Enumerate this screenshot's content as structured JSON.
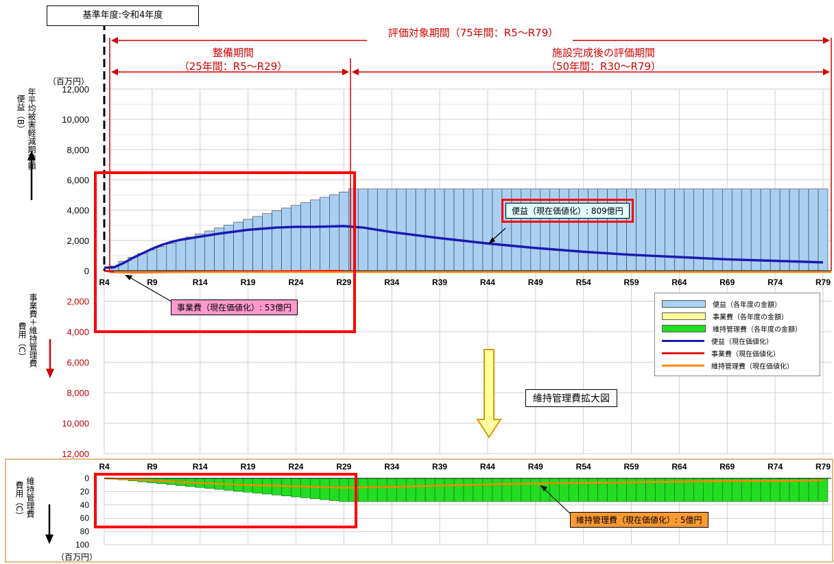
{
  "base_year_label": "基準年度:令和4年度",
  "periods": {
    "evaluation_total": "評価対象期間（75年間：R5～R79）",
    "construction_title": "整備期間",
    "construction_range": "（25年間：R5～R29）",
    "post_title": "施設完成後の評価期間",
    "post_range": "（50年間：R30～R79）"
  },
  "unit_top": "（百万円）",
  "unit_bottom": "（百万円）",
  "axis_labels": {
    "benefit_main": "便益（B）",
    "benefit_sub": "年平均被害軽減期待額",
    "cost_main": "費用（C）",
    "cost_sub": "事業費＋維持管理費",
    "maint_main": "費用（C）",
    "maint_sub": "維持管理費"
  },
  "callouts": {
    "benefit_pv": "便益（現在価値化）:  809億円",
    "project_cost_pv": "事業費（現在価値化）:  53億円",
    "maint_pv": "維持管理費（現在価値化）:  5億円",
    "zoom_label": "維持管理費拡大図"
  },
  "legend": [
    {
      "label": "便益（各年度の金額）",
      "color": "#a9cff2",
      "kind": "box"
    },
    {
      "label": "事業費（各年度の金額）",
      "color": "#ffff99",
      "kind": "box"
    },
    {
      "label": "維持管理費（各年度の金額）",
      "color": "#22dd22",
      "kind": "box"
    },
    {
      "label": "便益（現在価値化）",
      "color": "#1a1ab0",
      "kind": "line"
    },
    {
      "label": "事業費（現在価値化）",
      "color": "#e51111",
      "kind": "line"
    },
    {
      "label": "維持管理費（現在価値化）",
      "color": "#ff8800",
      "kind": "line"
    }
  ],
  "chart_data": [
    {
      "type": "bar",
      "x_tick_labels": [
        "R4",
        "R9",
        "R14",
        "R19",
        "R24",
        "R29",
        "R34",
        "R39",
        "R44",
        "R49",
        "R54",
        "R59",
        "R64",
        "R69",
        "R74",
        "R79"
      ],
      "y_upper_ticks": [
        "12,000",
        "10,000",
        "8,000",
        "6,000",
        "4,000",
        "2,000",
        "0"
      ],
      "y_lower_ticks": [
        "2,000",
        "4,000",
        "6,000",
        "8,000",
        "10,000",
        "12,000"
      ],
      "ylim_upper": [
        0,
        12000
      ],
      "ylim_lower": [
        0,
        12000
      ],
      "grid": true,
      "legend_position": "right",
      "series": [
        {
          "name": "便益（各年度の金額）",
          "type": "bar",
          "start": "R5",
          "end": "R79",
          "description_values": "rises from ~300 at R5 to ~5,200 at R29, then constant ~5,400 R30–R79"
        },
        {
          "name": "便益（現在価値化）",
          "type": "line",
          "points": [
            [
              "R4",
              200
            ],
            [
              "R5",
              220
            ],
            [
              "R6",
              500
            ],
            [
              "R7",
              850
            ],
            [
              "R8",
              1150
            ],
            [
              "R9",
              1450
            ],
            [
              "R10",
              1700
            ],
            [
              "R11",
              1900
            ],
            [
              "R12",
              2050
            ],
            [
              "R14",
              2250
            ],
            [
              "R16",
              2450
            ],
            [
              "R19",
              2700
            ],
            [
              "R22",
              2850
            ],
            [
              "R24",
              2900
            ],
            [
              "R26",
              2900
            ],
            [
              "R29",
              2950
            ],
            [
              "R31",
              2850
            ],
            [
              "R34",
              2550
            ],
            [
              "R39",
              2150
            ],
            [
              "R44",
              1800
            ],
            [
              "R49",
              1500
            ],
            [
              "R54",
              1250
            ],
            [
              "R59",
              1050
            ],
            [
              "R64",
              900
            ],
            [
              "R69",
              750
            ],
            [
              "R74",
              650
            ],
            [
              "R79",
              550
            ]
          ]
        },
        {
          "name": "事業費（現在価値化）",
          "type": "line",
          "points": [
            [
              "R4",
              0
            ],
            [
              "R5",
              -100
            ],
            [
              "R7",
              -120
            ],
            [
              "R9",
              -110
            ],
            [
              "R14",
              -80
            ],
            [
              "R19",
              -60
            ],
            [
              "R24",
              -40
            ],
            [
              "R29",
              -20
            ]
          ]
        },
        {
          "name": "維持管理費（現在価値化）",
          "type": "line",
          "points": [
            [
              "R4",
              0
            ],
            [
              "R79",
              -10
            ]
          ]
        }
      ]
    },
    {
      "type": "bar",
      "title": "維持管理費拡大図",
      "x_tick_labels": [
        "R4",
        "R9",
        "R14",
        "R19",
        "R24",
        "R29",
        "R34",
        "R39",
        "R44",
        "R49",
        "R54",
        "R59",
        "R64",
        "R69",
        "R74",
        "R79"
      ],
      "y_ticks": [
        "0",
        "20",
        "40",
        "60",
        "80",
        "100"
      ],
      "ylim": [
        0,
        100
      ],
      "series": [
        {
          "name": "維持管理費（各年度の金額）",
          "type": "bar",
          "start": "R5",
          "end": "R79",
          "description_values": "grows linearly from ~1 at R5 to ~35 at R29, then constant 35 R30–R79"
        },
        {
          "name": "維持管理費（現在価値化）",
          "type": "line",
          "points": [
            [
              "R4",
              0
            ],
            [
              "R9",
              3
            ],
            [
              "R14",
              7
            ],
            [
              "R19",
              10
            ],
            [
              "R24",
              12
            ],
            [
              "R29",
              14
            ],
            [
              "R34",
              13
            ],
            [
              "R39",
              11
            ],
            [
              "R44",
              9
            ],
            [
              "R49",
              8
            ],
            [
              "R54",
              7
            ],
            [
              "R59",
              6
            ],
            [
              "R64",
              5
            ],
            [
              "R69",
              4
            ],
            [
              "R74",
              4
            ],
            [
              "R79",
              3
            ]
          ]
        }
      ]
    }
  ]
}
